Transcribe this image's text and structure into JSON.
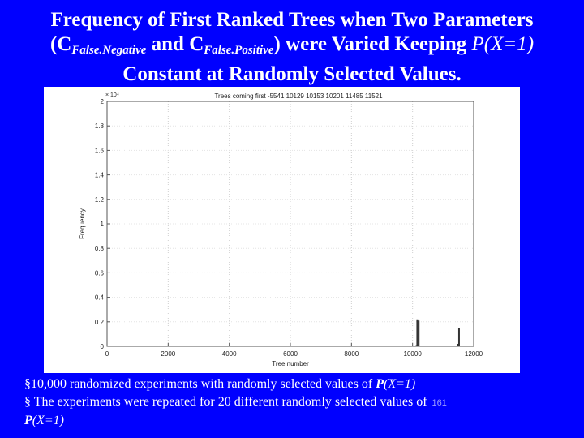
{
  "slide": {
    "title_line1": "Frequency of First Ranked Trees when Two Parameters",
    "title_l2_open": "(C",
    "title_l2_sub1": "False.Negative",
    "title_l2_and": " and C",
    "title_l2_sub2": "False.Positive",
    "title_l2_close": ") were Varied Keeping ",
    "title_l2_p": "P(X=1)",
    "title_line3": "Constant at Randomly Selected Values.",
    "bullet1_prefix": "§10,000 randomized experiments with randomly selected values of ",
    "bullet1_p": "P",
    "bullet1_x": "(X=1)",
    "bullet2_prefix": "§ The experiments were repeated for 20 different randomly selected values of",
    "slide_number": "161",
    "bullet2_p": "P",
    "bullet2_x": "(X=1)",
    "background_color": "#0000ff"
  },
  "chart_data": {
    "type": "bar",
    "title": "Trees coming first -5541  10129  10153  10201  11485  11521",
    "xlabel": "Tree number",
    "ylabel": "Frequency",
    "scale_label": "× 10⁴",
    "xlim": [
      0,
      12000
    ],
    "ylim": [
      0,
      2
    ],
    "xticks": [
      0,
      2000,
      4000,
      6000,
      8000,
      10000,
      12000
    ],
    "xtick_labels": [
      "0",
      "2000",
      "4000",
      "6000",
      "8000",
      "10000",
      "12000"
    ],
    "yticks": [
      0,
      0.2,
      0.4,
      0.6,
      0.8,
      1,
      1.2,
      1.4,
      1.6,
      1.8,
      2
    ],
    "ytick_labels": [
      "0",
      "0.2",
      "0.4",
      "0.6",
      "0.8",
      "1",
      "1.2",
      "1.4",
      "1.6",
      "1.8",
      "2"
    ],
    "grid": true,
    "x": [
      5541,
      10129,
      10153,
      10201,
      11485,
      11521
    ],
    "values": [
      0.0005,
      0.01,
      0.22,
      0.21,
      0.02,
      0.15
    ],
    "bar_color": "#333333"
  }
}
